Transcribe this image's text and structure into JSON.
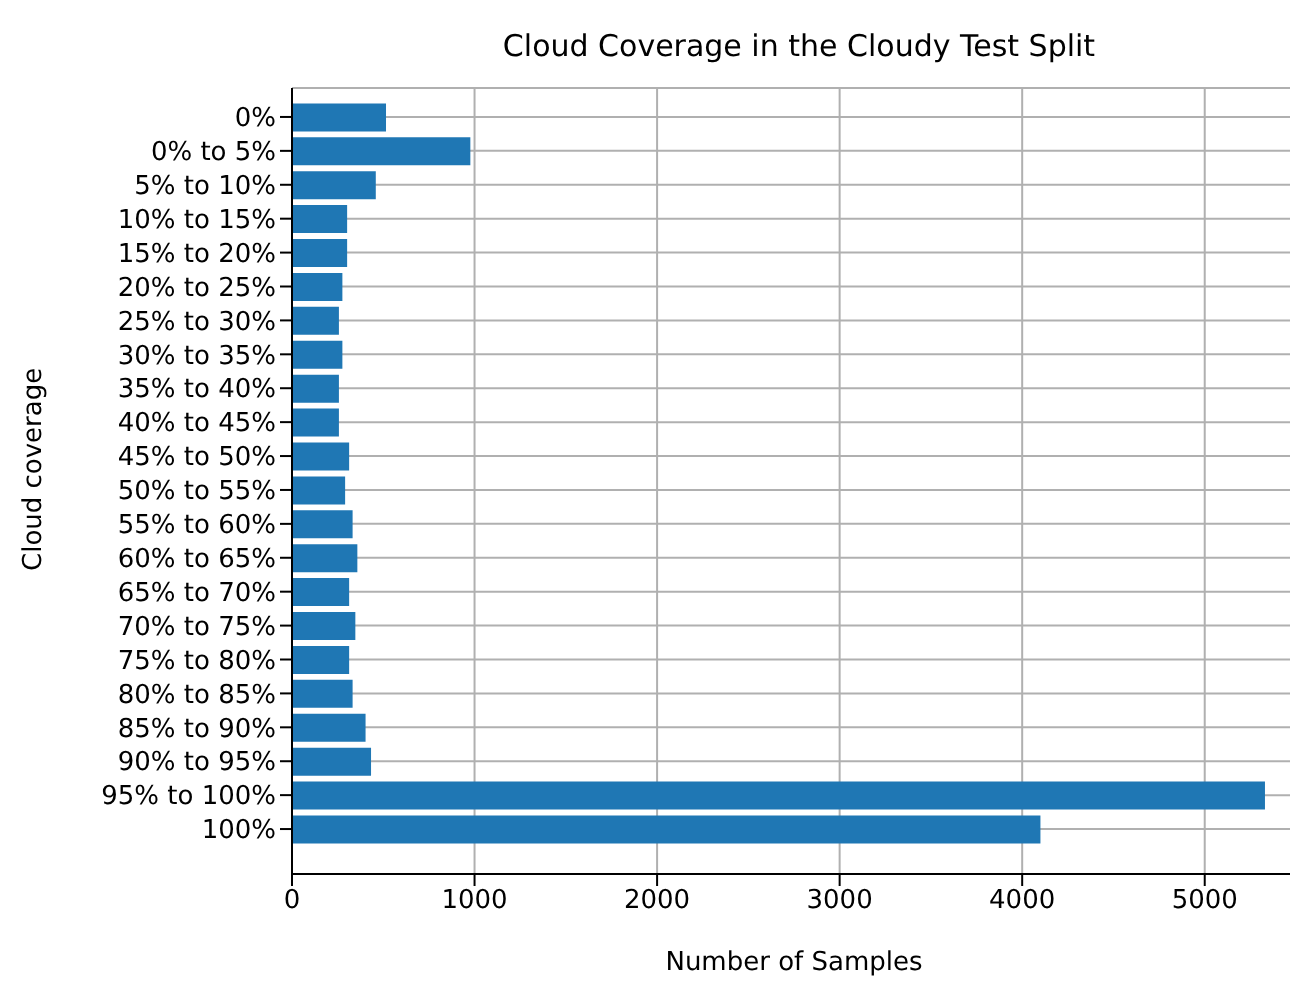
{
  "chart_data": {
    "type": "bar",
    "orientation": "horizontal",
    "title": "Cloud Coverage in the Cloudy Test Split",
    "xlabel": "Number of Samples",
    "ylabel": "Cloud coverage",
    "categories": [
      "0%",
      "0% to 5%",
      "5% to 10%",
      "10% to 15%",
      "15% to 20%",
      "20% to 25%",
      "25% to 30%",
      "30% to 35%",
      "35% to 40%",
      "40% to 45%",
      "45% to 50%",
      "50% to 55%",
      "55% to 60%",
      "60% to 65%",
      "65% to 70%",
      "70% to 75%",
      "75% to 80%",
      "80% to 85%",
      "85% to 90%",
      "90% to 95%",
      "95% to 100%",
      "100%"
    ],
    "values": [
      515,
      977,
      459,
      302,
      302,
      276,
      257,
      276,
      257,
      257,
      313,
      291,
      332,
      358,
      313,
      347,
      313,
      332,
      403,
      433,
      5330,
      4100
    ],
    "color": "#1f77b4",
    "xlim": [
      0,
      5500
    ],
    "xticks": [
      0,
      1000,
      2000,
      3000,
      4000,
      5000
    ],
    "grid": true
  }
}
